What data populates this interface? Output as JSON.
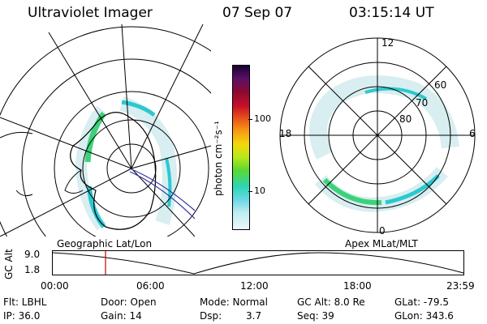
{
  "header": {
    "instrument": "Ultraviolet Imager",
    "date": "07 Sep 07",
    "time": "03:15:14 UT"
  },
  "colorbar": {
    "unit": "photon cm⁻²s⁻¹",
    "ticks": [
      {
        "label": "100",
        "value": 100
      },
      {
        "label": "10",
        "value": 10
      }
    ],
    "colors": [
      "#1a0033",
      "#5a1068",
      "#8a0a30",
      "#c8102a",
      "#e8501a",
      "#f89a14",
      "#f4d80c",
      "#b8e81a",
      "#5ad832",
      "#2cd6b4",
      "#6ad8e6",
      "#c0ecf2",
      "#eef8fa"
    ]
  },
  "left_panel": {
    "label": "Geographic Lat/Lon"
  },
  "right_panel": {
    "label": "Apex  MLat/MLT",
    "mlt_labels": [
      "12",
      "18",
      "6",
      "0"
    ],
    "lat_labels": [
      "60",
      "70",
      "80"
    ]
  },
  "timeline": {
    "ylabel": "GC Alt",
    "y_ticks": [
      "9.0",
      "1.8"
    ],
    "x_ticks": [
      "00:00",
      "06:00",
      "12:00",
      "18:00",
      "23:59"
    ]
  },
  "info": {
    "flt": "Flt: LBHL",
    "ip": "IP: 36.0",
    "door": "Door: Open",
    "gain": "Gain: 14",
    "mode": "Mode: Normal",
    "dsp_label": "Dsp:",
    "dsp_value": "3.7",
    "gc_alt": "GC Alt: 8.0 Re",
    "seq": "Seq: 39",
    "glat": "GLat: -79.5",
    "glon": "GLon: 343.6"
  },
  "colors": {
    "aurora_green": "#3cd27a",
    "aurora_cyan": "#2cc8d0",
    "aurora_pale": "#d8eef0",
    "marker_red": "#cc0000",
    "orbit_line": "#3030a0"
  }
}
